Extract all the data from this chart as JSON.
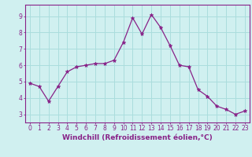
{
  "x": [
    0,
    1,
    2,
    3,
    4,
    5,
    6,
    7,
    8,
    9,
    10,
    11,
    12,
    13,
    14,
    15,
    16,
    17,
    18,
    19,
    20,
    21,
    22,
    23
  ],
  "y": [
    4.9,
    4.7,
    3.8,
    4.7,
    5.6,
    5.9,
    6.0,
    6.1,
    6.1,
    6.3,
    7.4,
    8.9,
    7.9,
    9.1,
    8.3,
    7.2,
    6.0,
    5.9,
    4.5,
    4.1,
    3.5,
    3.3,
    3.0,
    3.2
  ],
  "line_color": "#882288",
  "marker": "*",
  "marker_size": 3.5,
  "bg_color": "#d0f0f0",
  "grid_color": "#aadddd",
  "axis_color": "#882288",
  "spine_color": "#882288",
  "xlabel": "Windchill (Refroidissement éolien,°C)",
  "xlim": [
    -0.5,
    23.5
  ],
  "ylim": [
    2.5,
    9.7
  ],
  "yticks": [
    3,
    4,
    5,
    6,
    7,
    8,
    9
  ],
  "xticks": [
    0,
    1,
    2,
    3,
    4,
    5,
    6,
    7,
    8,
    9,
    10,
    11,
    12,
    13,
    14,
    15,
    16,
    17,
    18,
    19,
    20,
    21,
    22,
    23
  ],
  "tick_fontsize": 5.5,
  "xlabel_fontsize": 6.5
}
